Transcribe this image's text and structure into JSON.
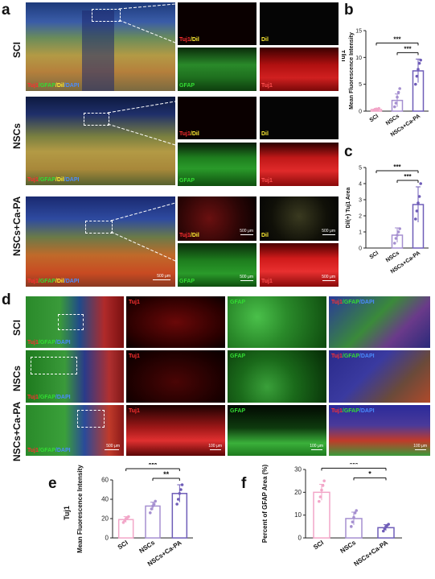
{
  "panels": {
    "a": {
      "letter": "a",
      "rows": [
        "SCI",
        "NSCs",
        "NSCs+Ca-PA"
      ],
      "merge_label": {
        "tuj1": "Tuj1",
        "gfap": "/GFAP",
        "dil": "/Dil",
        "dapi": "/DAPI"
      },
      "channel_labels": {
        "tuj1_dil": {
          "tuj1": "Tuj1",
          "dil": "/Dil"
        },
        "dil": "Dil",
        "gfap": "GFAP",
        "tuj1": "Tuj1"
      },
      "scale_bars": [
        "500 μm",
        "500 μm",
        "500 μm",
        "500 μm",
        "500 μm"
      ]
    },
    "d": {
      "letter": "d",
      "rows": [
        "SCI",
        "NSCs",
        "NSCs+Ca-PA"
      ],
      "merge_label": {
        "tuj1": "Tuj1",
        "gfap": "/GFAP",
        "dapi": "/DAPI"
      },
      "channel_labels": {
        "tuj1": "Tuj1",
        "gfap": "GFAP",
        "merge": {
          "tuj1": "Tuj1",
          "gfap": "/GFAP",
          "dapi": "/DAPI"
        }
      },
      "scale_bars": [
        "500 μm",
        "100 μm",
        "100 μm",
        "100 μm"
      ]
    }
  },
  "chart_data": [
    {
      "id": "b",
      "letter": "b",
      "type": "bar",
      "title": "Tuj1",
      "ylabel": "Mean Fluorescence Intensity",
      "categories": [
        "SCI",
        "NSCs",
        "NSCs+Ca-PA"
      ],
      "values": [
        0.3,
        2.0,
        7.5
      ],
      "errors": [
        0.2,
        1.2,
        2.2
      ],
      "points": [
        [
          0.2,
          0.3,
          0.4,
          0.2,
          0.5
        ],
        [
          0.8,
          1.5,
          2.6,
          3.5,
          4.2
        ],
        [
          5.0,
          6.5,
          7.8,
          8.9,
          9.5
        ]
      ],
      "yticks": [
        0,
        5,
        10,
        15
      ],
      "ylim": [
        0,
        15
      ],
      "significance": [
        {
          "from": 0,
          "to": 2,
          "label": "***"
        },
        {
          "from": 1,
          "to": 2,
          "label": "***"
        }
      ],
      "colors": [
        "#f2a6c8",
        "#a58fd0",
        "#6f5db8"
      ]
    },
    {
      "id": "c",
      "letter": "c",
      "type": "bar",
      "title": "",
      "ylabel": "Dil(+) Tuj1 Area",
      "categories": [
        "SCI",
        "NSCs",
        "NSCs+Ca-PA"
      ],
      "values": [
        0,
        0.8,
        2.7
      ],
      "errors": [
        0,
        0.45,
        1.1
      ],
      "points": [
        [],
        [
          0.3,
          0.6,
          0.8,
          1.0,
          1.2
        ],
        [
          1.8,
          2.3,
          2.8,
          3.2,
          4.0
        ]
      ],
      "yticks": [
        0,
        1,
        2,
        3,
        4,
        5
      ],
      "ylim": [
        0,
        5
      ],
      "significance": [
        {
          "from": 0,
          "to": 2,
          "label": "***"
        },
        {
          "from": 1,
          "to": 2,
          "label": "***"
        }
      ],
      "colors": [
        "#f2a6c8",
        "#a58fd0",
        "#6f5db8"
      ]
    },
    {
      "id": "e",
      "letter": "e",
      "type": "bar",
      "title": "Tuj1",
      "ylabel": "Mean Fluorescence Intensity",
      "categories": [
        "SCI",
        "NSCs",
        "NSCs+Ca-PA"
      ],
      "values": [
        19,
        33,
        46
      ],
      "errors": [
        3,
        4,
        9
      ],
      "points": [
        [
          16,
          18,
          20,
          21,
          22
        ],
        [
          26,
          30,
          33,
          35,
          38
        ],
        [
          35,
          40,
          46,
          50,
          55
        ]
      ],
      "yticks": [
        0,
        20,
        40,
        60
      ],
      "ylim": [
        0,
        60
      ],
      "significance": [
        {
          "from": 0,
          "to": 2,
          "label": "***"
        },
        {
          "from": 1,
          "to": 2,
          "label": "**"
        }
      ],
      "colors": [
        "#f2a6c8",
        "#a58fd0",
        "#6f5db8"
      ]
    },
    {
      "id": "f",
      "letter": "f",
      "type": "bar",
      "title": "",
      "ylabel": "Percent of GFAP Area (%)",
      "categories": [
        "SCI",
        "NSCs",
        "NSCs+Ca-PA"
      ],
      "values": [
        20,
        8.5,
        4.5
      ],
      "errors": [
        3.5,
        2.8,
        1.3
      ],
      "points": [
        [
          16,
          18,
          21,
          23,
          25
        ],
        [
          5,
          7,
          9,
          11,
          12
        ],
        [
          3,
          4,
          5,
          5.5,
          6
        ]
      ],
      "yticks": [
        0,
        10,
        20,
        30
      ],
      "ylim": [
        0,
        30
      ],
      "significance": [
        {
          "from": 0,
          "to": 2,
          "label": "***"
        },
        {
          "from": 1,
          "to": 2,
          "label": "*"
        }
      ],
      "colors": [
        "#f2a6c8",
        "#a58fd0",
        "#6f5db8"
      ]
    }
  ]
}
